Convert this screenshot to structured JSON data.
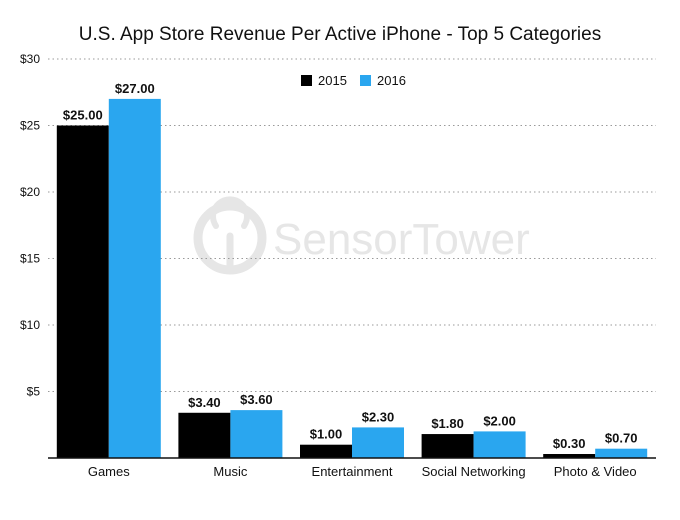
{
  "chart_data": {
    "type": "bar",
    "title": "U.S. App Store Revenue Per Active iPhone - Top 5 Categories",
    "categories": [
      "Games",
      "Music",
      "Entertainment",
      "Social Networking",
      "Photo & Video"
    ],
    "series": [
      {
        "name": "2015",
        "color": "#000000",
        "values": [
          25.0,
          3.4,
          1.0,
          1.8,
          0.3
        ],
        "labels": [
          "$25.00",
          "$3.40",
          "$1.00",
          "$1.80",
          "$0.30"
        ]
      },
      {
        "name": "2016",
        "color": "#2aa6ef",
        "values": [
          27.0,
          3.6,
          2.3,
          2.0,
          0.7
        ],
        "labels": [
          "$27.00",
          "$3.60",
          "$2.30",
          "$2.00",
          "$0.70"
        ]
      }
    ],
    "ylim": [
      0,
      30
    ],
    "yticks": [
      5,
      10,
      15,
      20,
      25,
      30
    ],
    "ytick_labels": [
      "$5",
      "$10",
      "$15",
      "$20",
      "$25",
      "$30"
    ],
    "xlabel": "",
    "ylabel": "",
    "legend_position": "top-center",
    "grid": true
  },
  "watermark": {
    "brand_light": "Sensor",
    "brand_bold": "Tower",
    "icon": "sensor-tower-logo-icon"
  }
}
